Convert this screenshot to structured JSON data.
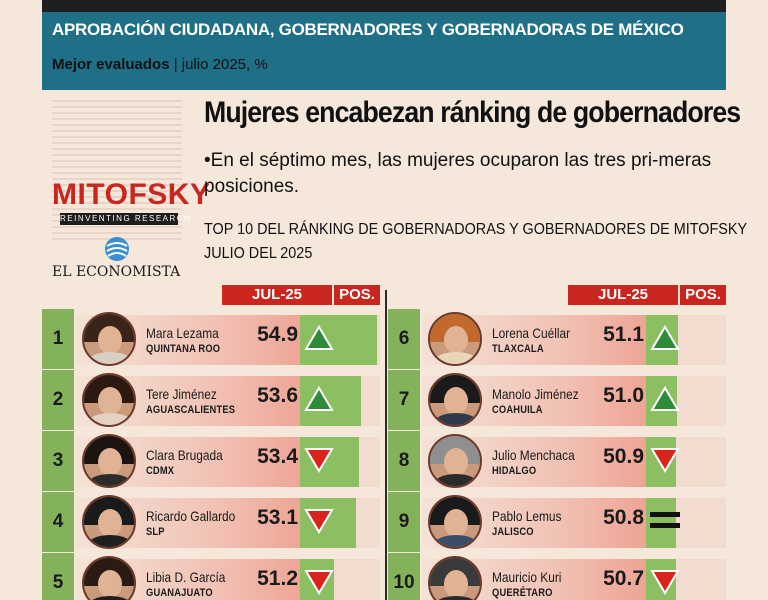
{
  "header": {
    "title": "APROBACIÓN CIUDADANA, GOBERNADORES Y GOBERNADORAS DE MÉXICO",
    "subtitle_bold": "Mejor evaluados",
    "subtitle_rest": " | julio 2025, %"
  },
  "logos": {
    "mitofsky": "MITOFSKY",
    "tagline": "REINVENTING RESEARCH",
    "economista": "EL ECONOMISTA"
  },
  "headline": "Mujeres encabezan ránking de gobernadores",
  "lead": "•En el séptimo mes, las mujeres ocuparon las tres pri-meras posiciones.",
  "chart_title_line1": "TOP 10 DEL RÁNKING DE GOBERNADORAS Y GOBERNADORES DE MITOFSKY",
  "chart_title_line2": "JULIO DEL 2025",
  "columns": {
    "value": "JUL-25",
    "pos": "POS."
  },
  "colors": {
    "red": "#c8261e",
    "green": "#84b25a",
    "teal": "#1f6f86",
    "up": "#2f8a3a",
    "down": "#d8241d"
  },
  "chart_data": {
    "type": "table",
    "title": "TOP 10 DEL RÁNKING DE GOBERNADORAS Y GOBERNADORES DE MITOFSKY JULIO DEL 2025",
    "columns": [
      "JUL-25",
      "POS."
    ],
    "rows": [
      {
        "rank": "1",
        "name": "Mara Lezama",
        "state": "QUINTANA ROO",
        "value": 54.9,
        "trend": "up"
      },
      {
        "rank": "2",
        "name": "Tere Jiménez",
        "state": "AGUASCALIENTES",
        "value": 53.6,
        "trend": "up"
      },
      {
        "rank": "3",
        "name": "Clara Brugada",
        "state": "CDMX",
        "value": 53.4,
        "trend": "down"
      },
      {
        "rank": "4",
        "name": "Ricardo Gallardo",
        "state": "SLP",
        "value": 53.1,
        "trend": "down"
      },
      {
        "rank": "5",
        "name": "Libia D. García",
        "state": "GUANAJUATO",
        "value": 51.2,
        "trend": "down"
      },
      {
        "rank": "6",
        "name": "Lorena Cuéllar",
        "state": "TLAXCALA",
        "value": 51.1,
        "trend": "up"
      },
      {
        "rank": "7",
        "name": "Manolo Jiménez",
        "state": "COAHUILA",
        "value": 51.0,
        "trend": "up"
      },
      {
        "rank": "8",
        "name": "Julio Menchaca",
        "state": "HIDALGO",
        "value": 50.9,
        "trend": "down"
      },
      {
        "rank": "9",
        "name": "Pablo Lemus",
        "state": "JALISCO",
        "value": 50.8,
        "trend": "equal"
      },
      {
        "rank": "10",
        "name": "Mauricio Kuri",
        "state": "QUERÉTARO",
        "value": 50.7,
        "trend": "down"
      }
    ]
  }
}
